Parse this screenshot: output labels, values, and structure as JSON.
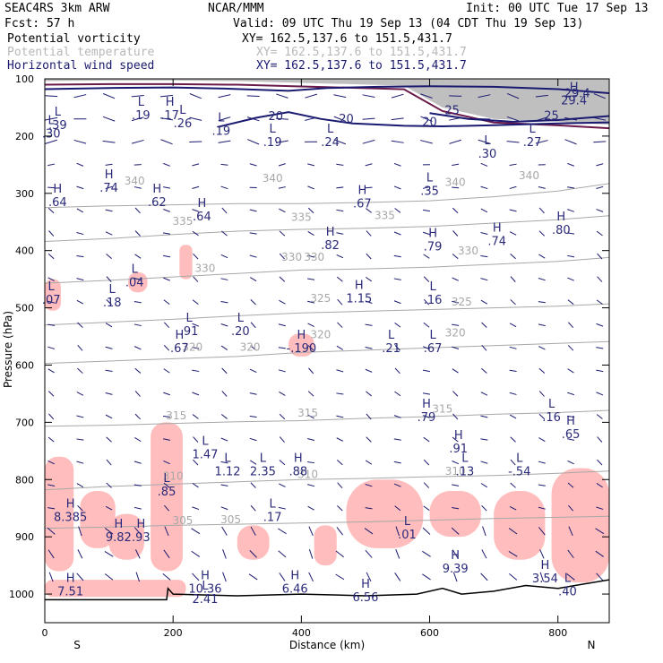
{
  "header": {
    "title": "SEAC4RS  3km ARW",
    "institution": "NCAR/MMM",
    "init": "Init: 00 UTC Tue 17 Sep 13",
    "fcst": "Fcst:   57 h",
    "valid": "Valid: 09 UTC Thu 19 Sep 13 (04 CDT Thu 19 Sep 13)",
    "fields": [
      {
        "name": "Potential vorticity",
        "xy": "XY= 162.5,137.6 to 151.5,431.7",
        "color": "#000000"
      },
      {
        "name": "Potential temperature",
        "xy": "XY= 162.5,137.6 to 151.5,431.7",
        "color": "#b8b8b8"
      },
      {
        "name": "Horizontal wind speed",
        "xy": "XY= 162.5,137.6 to 151.5,431.7",
        "color": "#1a1a70"
      }
    ]
  },
  "chart_data": {
    "type": "cross-section",
    "xlabel": "Distance (km)",
    "ylabel": "Pressure (hPa)",
    "xlim": [
      0,
      880
    ],
    "ylim": [
      1050,
      100
    ],
    "x_ticks": [
      "0",
      "200",
      "400",
      "600",
      "800"
    ],
    "y_ticks": [
      "100",
      "200",
      "300",
      "400",
      "500",
      "600",
      "700",
      "800",
      "900",
      "1000"
    ],
    "end_labels": {
      "left": "S",
      "right": "N"
    },
    "colors": {
      "potential_vorticity_fill": "#ffb6b6",
      "potential_temperature": "#a8a8a8",
      "wind_speed": "#1a1a70",
      "tropopause_band": "#8a8a8a"
    },
    "theta_contours": [
      {
        "label": "340",
        "points": [
          [
            0,
            325
          ],
          [
            100,
            322
          ],
          [
            200,
            320
          ],
          [
            300,
            318
          ],
          [
            400,
            318
          ],
          [
            500,
            316
          ],
          [
            600,
            313
          ],
          [
            700,
            306
          ],
          [
            800,
            296
          ],
          [
            880,
            283
          ]
        ]
      },
      {
        "label": "335",
        "points": [
          [
            0,
            384
          ],
          [
            100,
            379
          ],
          [
            200,
            372
          ],
          [
            300,
            366
          ],
          [
            400,
            363
          ],
          [
            500,
            361
          ],
          [
            600,
            358
          ],
          [
            700,
            352
          ],
          [
            800,
            346
          ],
          [
            880,
            339
          ]
        ]
      },
      {
        "label": "330",
        "points": [
          [
            0,
            457
          ],
          [
            100,
            452
          ],
          [
            200,
            446
          ],
          [
            300,
            440
          ],
          [
            400,
            434
          ],
          [
            500,
            432
          ],
          [
            600,
            429
          ],
          [
            700,
            424
          ],
          [
            800,
            419
          ],
          [
            880,
            412
          ]
        ]
      },
      {
        "label": "325",
        "points": [
          [
            0,
            530
          ],
          [
            100,
            525
          ],
          [
            200,
            520
          ],
          [
            300,
            514
          ],
          [
            400,
            509
          ],
          [
            500,
            506
          ],
          [
            600,
            503
          ],
          [
            700,
            500
          ],
          [
            800,
            497
          ],
          [
            880,
            493
          ]
        ]
      },
      {
        "label": "320",
        "points": [
          [
            0,
            597
          ],
          [
            100,
            593
          ],
          [
            200,
            589
          ],
          [
            300,
            585
          ],
          [
            400,
            578
          ],
          [
            500,
            574
          ],
          [
            600,
            570
          ],
          [
            700,
            566
          ],
          [
            800,
            562
          ],
          [
            880,
            559
          ]
        ]
      },
      {
        "label": "315",
        "points": [
          [
            0,
            707
          ],
          [
            100,
            705
          ],
          [
            200,
            702
          ],
          [
            300,
            699
          ],
          [
            400,
            697
          ],
          [
            500,
            693
          ],
          [
            600,
            690
          ],
          [
            700,
            686
          ],
          [
            800,
            683
          ],
          [
            880,
            679
          ]
        ]
      },
      {
        "label": "310",
        "points": [
          [
            0,
            818
          ],
          [
            100,
            812
          ],
          [
            200,
            808
          ],
          [
            300,
            804
          ],
          [
            400,
            800
          ],
          [
            500,
            798
          ],
          [
            600,
            795
          ],
          [
            700,
            793
          ],
          [
            800,
            789
          ],
          [
            880,
            785
          ]
        ]
      },
      {
        "label": "305",
        "points": [
          [
            0,
            885
          ],
          [
            100,
            883
          ],
          [
            200,
            880
          ],
          [
            300,
            878
          ],
          [
            400,
            876
          ],
          [
            500,
            874
          ],
          [
            600,
            871
          ],
          [
            700,
            868
          ],
          [
            800,
            866
          ],
          [
            880,
            864
          ]
        ]
      }
    ],
    "theta_labels": [
      {
        "text": "340",
        "x": 140,
        "p": 285
      },
      {
        "text": "340",
        "x": 355,
        "p": 280
      },
      {
        "text": "340",
        "x": 640,
        "p": 287
      },
      {
        "text": "340",
        "x": 755,
        "p": 275
      },
      {
        "text": "335",
        "x": 215,
        "p": 355
      },
      {
        "text": "335",
        "x": 400,
        "p": 348
      },
      {
        "text": "335",
        "x": 530,
        "p": 345
      },
      {
        "text": "330",
        "x": 420,
        "p": 418
      },
      {
        "text": "330",
        "x": 250,
        "p": 437
      },
      {
        "text": "330",
        "x": 660,
        "p": 407
      },
      {
        "text": "325",
        "x": 430,
        "p": 490
      },
      {
        "text": "325",
        "x": 650,
        "p": 496
      },
      {
        "text": "320",
        "x": 230,
        "p": 575
      },
      {
        "text": "320",
        "x": 430,
        "p": 553
      },
      {
        "text": "320",
        "x": 640,
        "p": 550
      },
      {
        "text": "320",
        "x": 320,
        "p": 575
      },
      {
        "text": "315",
        "x": 205,
        "p": 695
      },
      {
        "text": "315",
        "x": 410,
        "p": 690
      },
      {
        "text": "315",
        "x": 620,
        "p": 683
      },
      {
        "text": "310",
        "x": 200,
        "p": 800
      },
      {
        "text": "310",
        "x": 410,
        "p": 797
      },
      {
        "text": "310",
        "x": 640,
        "p": 792
      },
      {
        "text": "305",
        "x": 215,
        "p": 878
      },
      {
        "text": "305",
        "x": 290,
        "p": 876
      },
      {
        "text": "330",
        "x": 385,
        "p": 418
      }
    ],
    "wind_contours": [
      {
        "label": "20",
        "points": [
          [
            0,
            118
          ],
          [
            100,
            116
          ],
          [
            200,
            115
          ],
          [
            280,
            117
          ],
          [
            330,
            119
          ],
          [
            380,
            121
          ],
          [
            440,
            116
          ],
          [
            520,
            114
          ],
          [
            600,
            113
          ],
          [
            700,
            114
          ],
          [
            800,
            118
          ],
          [
            880,
            125
          ]
        ]
      },
      {
        "label": "20",
        "points": [
          [
            270,
            184
          ],
          [
            330,
            168
          ],
          [
            380,
            158
          ],
          [
            430,
            170
          ],
          [
            480,
            178
          ],
          [
            560,
            182
          ],
          [
            620,
            183
          ],
          [
            700,
            181
          ],
          [
            800,
            178
          ],
          [
            880,
            176
          ]
        ]
      },
      {
        "label": "25",
        "points": [
          [
            600,
            160
          ],
          [
            660,
            170
          ],
          [
            730,
            175
          ],
          [
            800,
            172
          ],
          [
            880,
            165
          ]
        ]
      }
    ],
    "wind_labels": [
      {
        "text": "20",
        "x": 360,
        "p": 172
      },
      {
        "text": "20",
        "x": 470,
        "p": 177
      },
      {
        "text": "20",
        "x": 600,
        "p": 182
      },
      {
        "text": "25",
        "x": 635,
        "p": 162
      },
      {
        "text": "25",
        "x": 790,
        "p": 171
      },
      {
        "text": "29.4",
        "x": 830,
        "p": 132
      }
    ],
    "extrema": [
      {
        "mark": "H",
        "value": "29.4",
        "x": 825,
        "p": 132
      },
      {
        "mark": "L",
        "value": ".30",
        "x": 10,
        "p": 190
      },
      {
        "mark": "L",
        "value": ".39",
        "x": 20,
        "p": 175
      },
      {
        "mark": "L",
        "value": ".19",
        "x": 150,
        "p": 158
      },
      {
        "mark": "H",
        "value": ".17",
        "x": 195,
        "p": 158
      },
      {
        "mark": "L",
        "value": ".26",
        "x": 215,
        "p": 172
      },
      {
        "mark": "L",
        "value": ".19",
        "x": 275,
        "p": 185
      },
      {
        "mark": "L",
        "value": ".19",
        "x": 355,
        "p": 205
      },
      {
        "mark": "L",
        "value": ".24",
        "x": 445,
        "p": 205
      },
      {
        "mark": "L",
        "value": ".27",
        "x": 760,
        "p": 205
      },
      {
        "mark": "L",
        "value": ".30",
        "x": 690,
        "p": 225
      },
      {
        "mark": "H",
        "value": ".74",
        "x": 100,
        "p": 285
      },
      {
        "mark": "H",
        "value": ".64",
        "x": 20,
        "p": 310
      },
      {
        "mark": "H",
        "value": ".62",
        "x": 175,
        "p": 310
      },
      {
        "mark": "H",
        "value": ".64",
        "x": 245,
        "p": 335
      },
      {
        "mark": "L",
        "value": ".35",
        "x": 600,
        "p": 290
      },
      {
        "mark": "H",
        "value": ".67",
        "x": 495,
        "p": 312
      },
      {
        "mark": "H",
        "value": ".80",
        "x": 805,
        "p": 358
      },
      {
        "mark": "H",
        "value": ".74",
        "x": 705,
        "p": 378
      },
      {
        "mark": "H",
        "value": ".82",
        "x": 445,
        "p": 385
      },
      {
        "mark": "H",
        "value": ".79",
        "x": 605,
        "p": 387
      },
      {
        "mark": "L",
        "value": ".04",
        "x": 140,
        "p": 450
      },
      {
        "mark": "L",
        "value": ".18",
        "x": 105,
        "p": 485
      },
      {
        "mark": "L",
        "value": ".07",
        "x": 10,
        "p": 480
      },
      {
        "mark": "H",
        "value": "1.15",
        "x": 490,
        "p": 478
      },
      {
        "mark": "L",
        "value": ".16",
        "x": 605,
        "p": 480
      },
      {
        "mark": "L",
        "value": ".91",
        "x": 225,
        "p": 535
      },
      {
        "mark": "L",
        "value": ".20",
        "x": 305,
        "p": 535
      },
      {
        "mark": "H",
        "value": ".67",
        "x": 210,
        "p": 565
      },
      {
        "mark": "L",
        "value": ".21",
        "x": 540,
        "p": 565
      },
      {
        "mark": "L",
        "value": ".67",
        "x": 605,
        "p": 565
      },
      {
        "mark": "H",
        "value": "-.190",
        "x": 400,
        "p": 565
      },
      {
        "mark": "L",
        "value": "1.47",
        "x": 250,
        "p": 750
      },
      {
        "mark": "L",
        "value": "1.12",
        "x": 285,
        "p": 780
      },
      {
        "mark": "L",
        "value": "2.35",
        "x": 340,
        "p": 780
      },
      {
        "mark": "H",
        "value": ".88",
        "x": 395,
        "p": 780
      },
      {
        "mark": "H",
        "value": ".79",
        "x": 595,
        "p": 685
      },
      {
        "mark": "L",
        "value": ".16",
        "x": 790,
        "p": 685
      },
      {
        "mark": "H",
        "value": ".65",
        "x": 820,
        "p": 715
      },
      {
        "mark": "H",
        "value": ".91",
        "x": 645,
        "p": 740
      },
      {
        "mark": "L",
        "value": ".13",
        "x": 655,
        "p": 780
      },
      {
        "mark": "L",
        "value": "-.54",
        "x": 740,
        "p": 780
      },
      {
        "mark": "L",
        "value": ".85",
        "x": 190,
        "p": 815
      },
      {
        "mark": "H",
        "value": "8.385",
        "x": 40,
        "p": 860
      },
      {
        "mark": "H",
        "value": "9.82",
        "x": 115,
        "p": 895
      },
      {
        "mark": "H",
        "value": ".93",
        "x": 150,
        "p": 895
      },
      {
        "mark": "L",
        "value": ".17",
        "x": 355,
        "p": 860
      },
      {
        "mark": "L",
        "value": ".01",
        "x": 565,
        "p": 890
      },
      {
        "mark": "H",
        "value": "9.39",
        "x": 640,
        "p": 950
      },
      {
        "mark": "H",
        "value": "3.54",
        "x": 780,
        "p": 967
      },
      {
        "mark": "L",
        "value": ".40",
        "x": 815,
        "p": 990
      },
      {
        "mark": "H",
        "value": "7.51",
        "x": 40,
        "p": 990
      },
      {
        "mark": "H",
        "value": "10.36",
        "x": 250,
        "p": 985
      },
      {
        "mark": "L",
        "value": "2.41",
        "x": 250,
        "p": 1003
      },
      {
        "mark": "H",
        "value": "6.46",
        "x": 390,
        "p": 985
      },
      {
        "mark": "H",
        "value": "6.56",
        "x": 500,
        "p": 1000
      }
    ],
    "pv_patches": [
      {
        "x": 0,
        "p": 450,
        "w": 25,
        "h": 55
      },
      {
        "x": 130,
        "p": 438,
        "w": 30,
        "h": 35
      },
      {
        "x": 210,
        "p": 390,
        "w": 20,
        "h": 60
      },
      {
        "x": 380,
        "p": 545,
        "w": 40,
        "h": 40
      },
      {
        "x": 0,
        "p": 760,
        "w": 45,
        "h": 200
      },
      {
        "x": 55,
        "p": 820,
        "w": 55,
        "h": 100
      },
      {
        "x": 100,
        "p": 860,
        "w": 55,
        "h": 80
      },
      {
        "x": 165,
        "p": 700,
        "w": 50,
        "h": 260
      },
      {
        "x": 300,
        "p": 880,
        "w": 50,
        "h": 60
      },
      {
        "x": 420,
        "p": 880,
        "w": 35,
        "h": 70
      },
      {
        "x": 470,
        "p": 800,
        "w": 120,
        "h": 120
      },
      {
        "x": 600,
        "p": 820,
        "w": 80,
        "h": 80
      },
      {
        "x": 700,
        "p": 820,
        "w": 80,
        "h": 120
      },
      {
        "x": 790,
        "p": 780,
        "w": 90,
        "h": 200
      },
      {
        "x": 0,
        "p": 975,
        "w": 220,
        "h": 30
      }
    ],
    "wind_barbs": {
      "x_step_km": 45,
      "p_step_hpa": 40,
      "color": "#1a1a70"
    },
    "grid": false
  }
}
